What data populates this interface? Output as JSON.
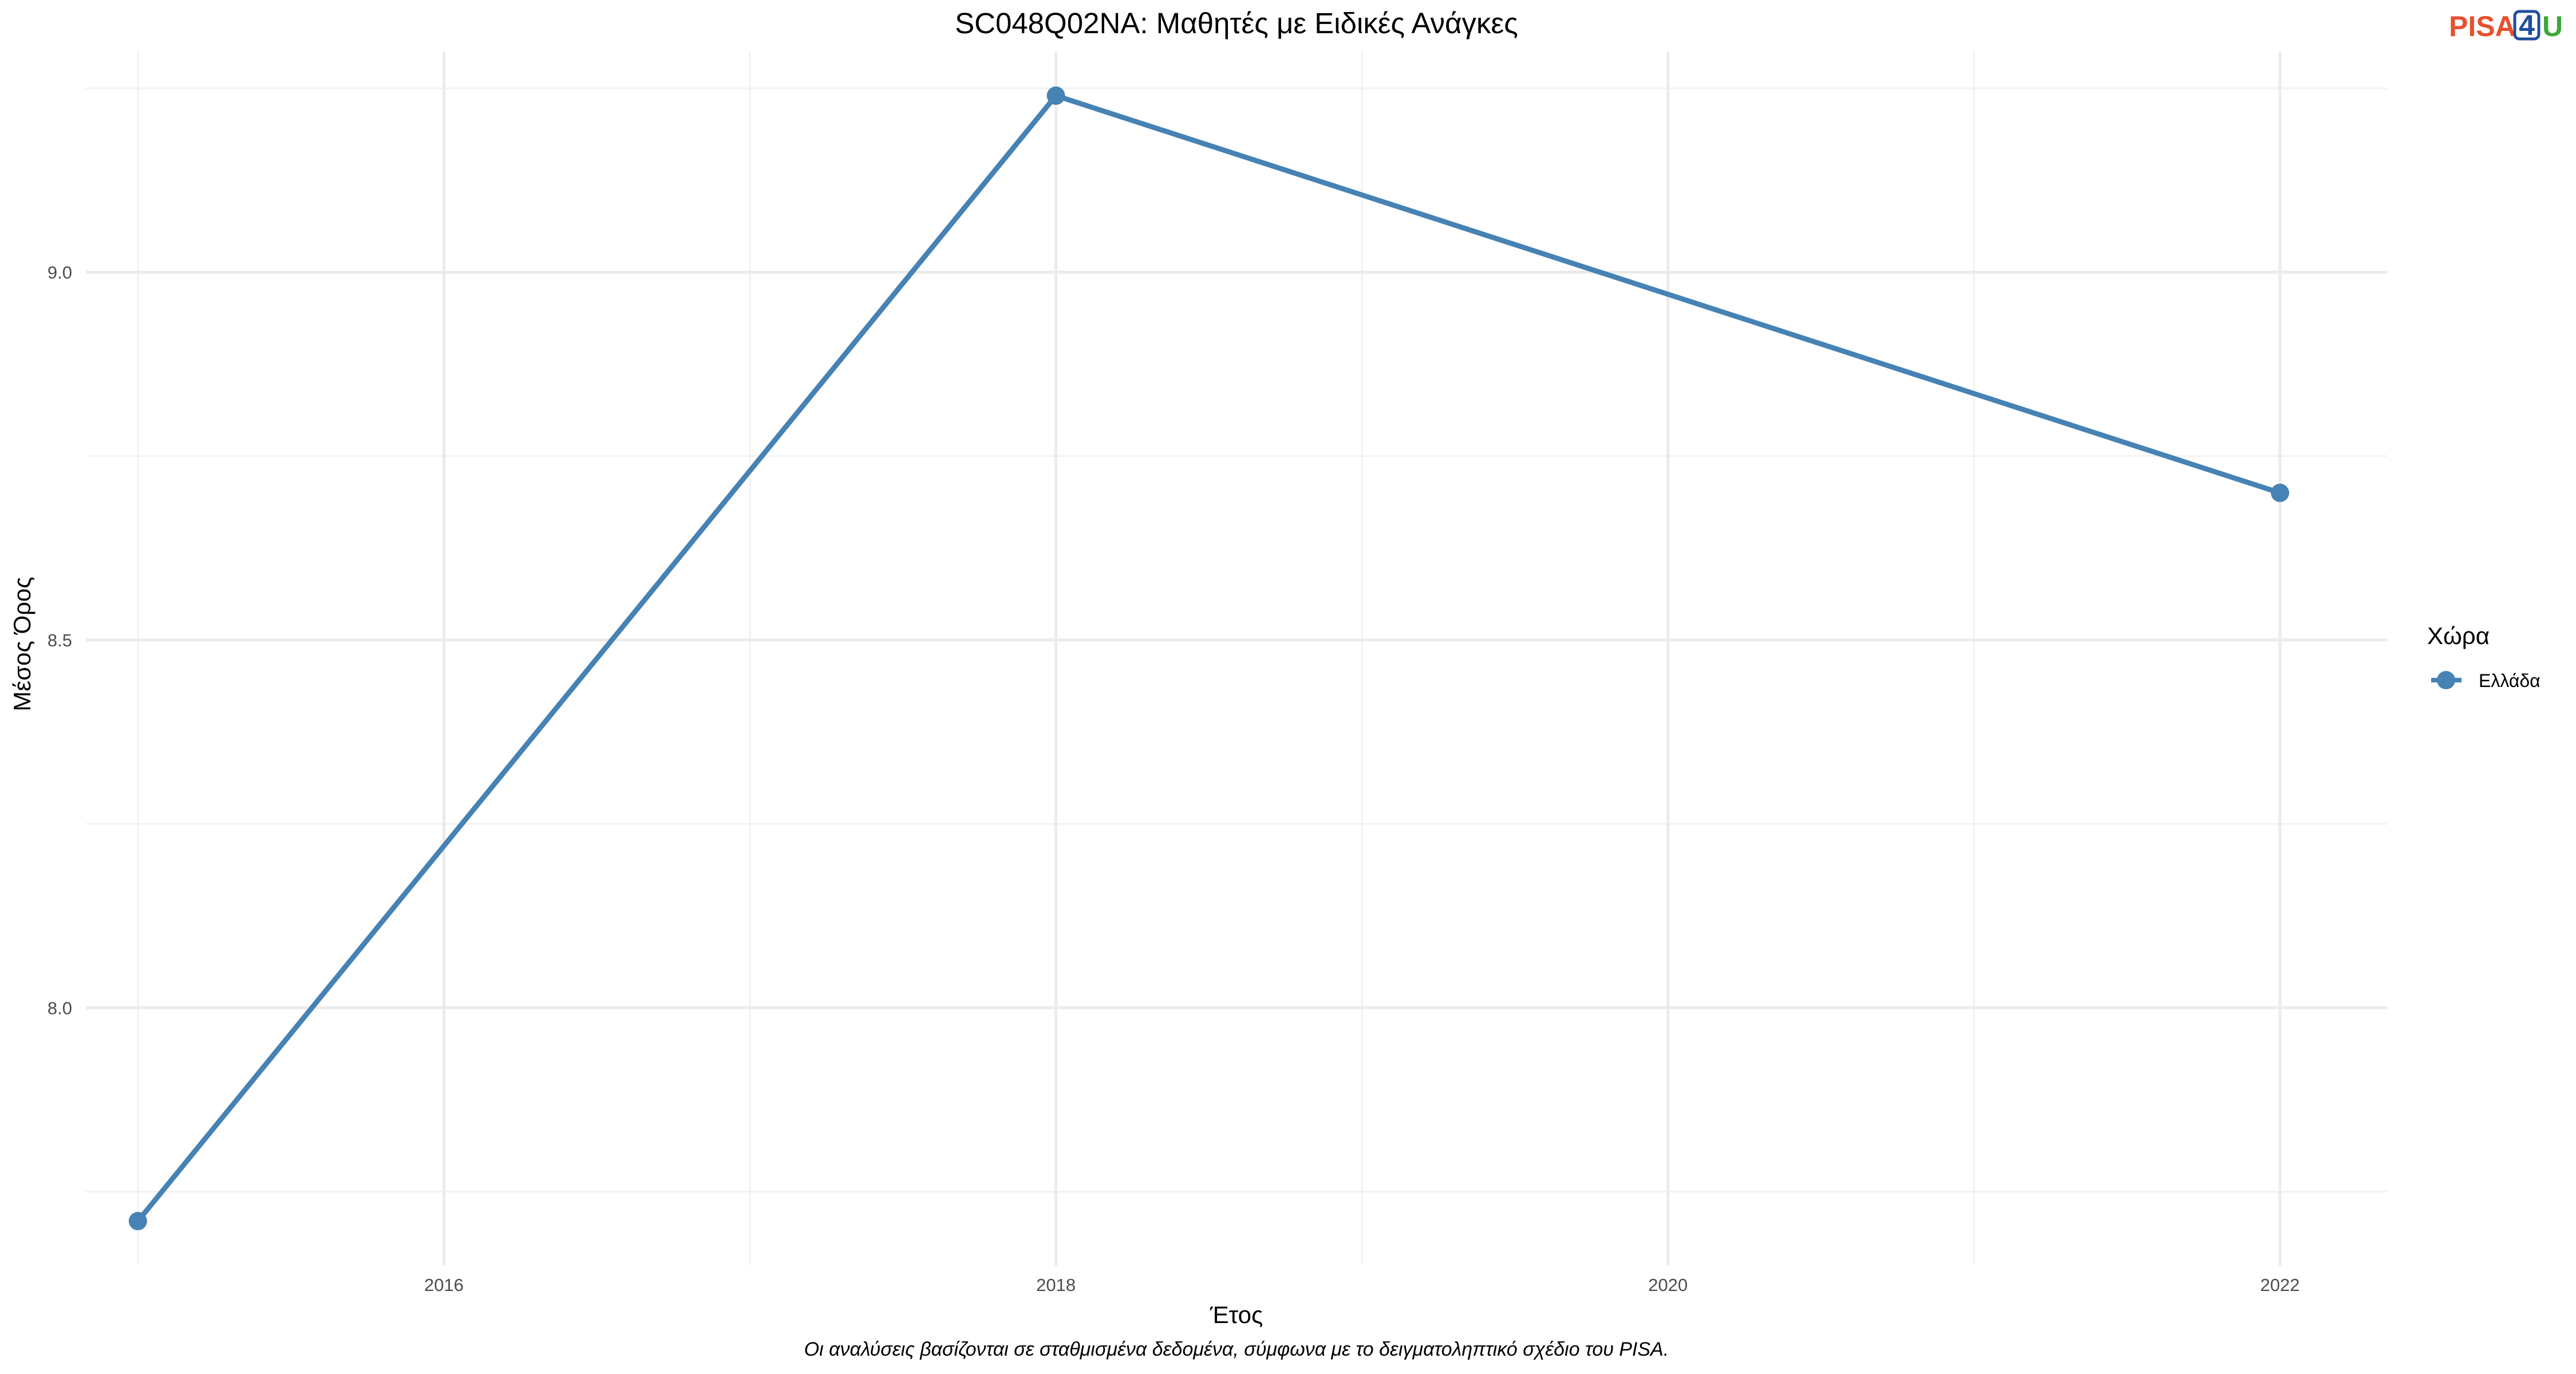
{
  "logo": {
    "part1": "PISA",
    "part2": "4",
    "part3": "U",
    "colors": {
      "part1": "#e8502e",
      "part2": "#1f4e9c",
      "part3": "#3aa935"
    }
  },
  "chart_data": {
    "type": "line",
    "title": "SC048Q02NA: Μαθητές με Ειδικές Ανάγκες",
    "xlabel": "Έτος",
    "ylabel": "Μέσος Όρος",
    "caption": "Οι αναλύσεις βασίζονται σε σταθμισμένα δεδομένα, σύμφωνα με το δειγματοληπτικό σχέδιο του PISA.",
    "x": [
      2015,
      2018,
      2022
    ],
    "series": [
      {
        "name": "Ελλάδα",
        "values": [
          7.71,
          9.24,
          8.7
        ],
        "color": "#4682b4"
      }
    ],
    "xlim": [
      2014.83,
      2022.35
    ],
    "ylim": [
      7.65,
      9.3
    ],
    "x_ticks": [
      2016,
      2018,
      2020,
      2022
    ],
    "x_tick_labels": [
      "2016",
      "2018",
      "2020",
      "2022"
    ],
    "x_minor_ticks": [
      2015,
      2017,
      2019,
      2021
    ],
    "y_ticks": [
      8.0,
      8.5,
      9.0
    ],
    "y_tick_labels": [
      "8.0",
      "8.5",
      "9.0"
    ],
    "y_minor_ticks": [
      7.75,
      8.25,
      8.75,
      9.25
    ],
    "grid": true,
    "legend": {
      "title": "Χώρα",
      "position": "right"
    }
  }
}
